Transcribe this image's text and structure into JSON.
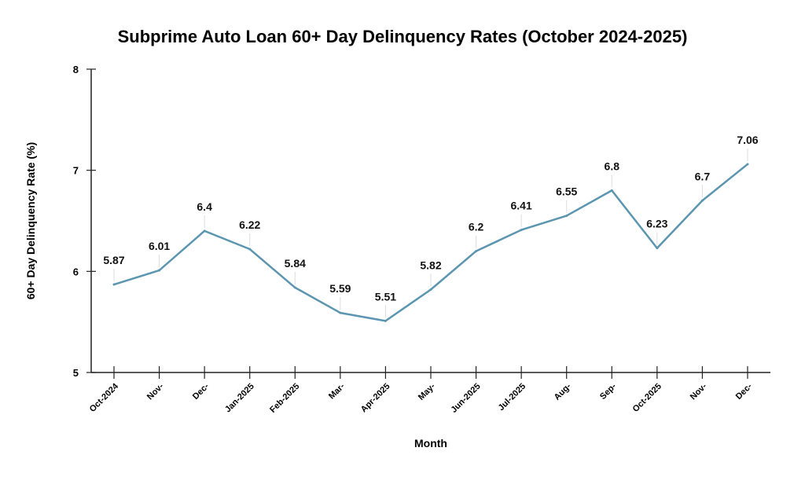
{
  "chart_data": {
    "type": "line",
    "title": "Subprime Auto Loan 60+ Day Delinquency Rates (October 2024-2025)",
    "xlabel": "Month",
    "ylabel": "60+ Day Delinquency Rate (%)",
    "categories": [
      "Oct-2024",
      "Nov-",
      "Dec-",
      "Jan-2025",
      "Feb-2025",
      "Mar-",
      "Apr-2025",
      "May-",
      "Jun-2025",
      "Jul-2025",
      "Aug-",
      "Sep-",
      "Oct-2025",
      "Nov-",
      "Dec-"
    ],
    "values": [
      5.87,
      6.01,
      6.4,
      6.22,
      5.84,
      5.59,
      5.51,
      5.82,
      6.2,
      6.41,
      6.55,
      6.8,
      6.23,
      6.7,
      7.06
    ],
    "ylim": [
      5,
      8
    ],
    "yticks": [
      5,
      6,
      7,
      8
    ],
    "grid": false,
    "line_color": "#5b95b0"
  }
}
